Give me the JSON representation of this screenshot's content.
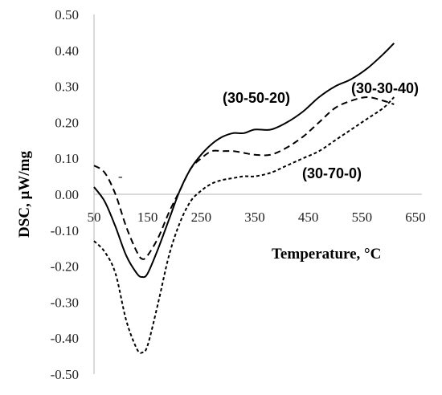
{
  "chart_data": {
    "type": "line",
    "title": "",
    "xlabel": "Temperature,  °C",
    "ylabel": "DSC,  μW/mg",
    "xlim": [
      50,
      700
    ],
    "ylim": [
      -0.5,
      0.5
    ],
    "x_ticks": [
      "50",
      "150",
      "250",
      "350",
      "450",
      "550",
      "650"
    ],
    "y_ticks": [
      "0.50",
      "0.40",
      "0.30",
      "0.20",
      "0.10",
      "0.00",
      "-0.10",
      "-0.20",
      "-0.30",
      "-0.40",
      "-0.50"
    ],
    "grid": false,
    "series": [
      {
        "name": "(30-50-20)",
        "style": "solid",
        "color": "#000000",
        "x": [
          50,
          70,
          90,
          110,
          130,
          140,
          150,
          170,
          190,
          210,
          230,
          250,
          270,
          290,
          310,
          330,
          350,
          380,
          410,
          440,
          470,
          500,
          530,
          560,
          590,
          610
        ],
        "y": [
          0.02,
          -0.02,
          -0.09,
          -0.17,
          -0.22,
          -0.23,
          -0.22,
          -0.15,
          -0.07,
          0.01,
          0.07,
          0.11,
          0.14,
          0.16,
          0.17,
          0.17,
          0.18,
          0.18,
          0.2,
          0.23,
          0.27,
          0.3,
          0.32,
          0.35,
          0.39,
          0.42
        ]
      },
      {
        "name": "(30-30-40)",
        "style": "dashed",
        "color": "#000000",
        "x": [
          50,
          70,
          90,
          110,
          130,
          140,
          150,
          170,
          190,
          210,
          230,
          250,
          270,
          290,
          310,
          330,
          350,
          380,
          410,
          440,
          470,
          500,
          530,
          560,
          590,
          610
        ],
        "y": [
          0.08,
          0.06,
          0.0,
          -0.09,
          -0.16,
          -0.18,
          -0.17,
          -0.12,
          -0.05,
          0.01,
          0.07,
          0.1,
          0.12,
          0.12,
          0.12,
          0.115,
          0.11,
          0.11,
          0.13,
          0.16,
          0.2,
          0.24,
          0.26,
          0.27,
          0.26,
          0.25
        ]
      },
      {
        "name": "(30-70-0)",
        "style": "dotted",
        "color": "#000000",
        "x": [
          50,
          70,
          90,
          110,
          130,
          140,
          150,
          170,
          190,
          210,
          230,
          250,
          270,
          290,
          310,
          330,
          350,
          380,
          410,
          440,
          470,
          500,
          530,
          560,
          590,
          610
        ],
        "y": [
          -0.13,
          -0.16,
          -0.22,
          -0.35,
          -0.43,
          -0.44,
          -0.42,
          -0.3,
          -0.17,
          -0.08,
          -0.02,
          0.01,
          0.03,
          0.04,
          0.045,
          0.05,
          0.05,
          0.06,
          0.08,
          0.1,
          0.12,
          0.15,
          0.18,
          0.21,
          0.24,
          0.27
        ]
      }
    ],
    "stray_mark": "-"
  }
}
